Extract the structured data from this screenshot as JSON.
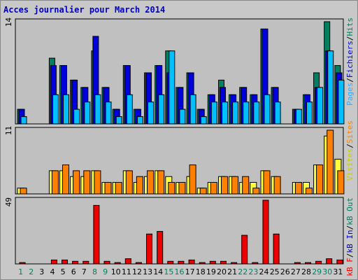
{
  "title": "Acces journalier pour March 2014",
  "days": [
    "1",
    "2",
    "3",
    "4",
    "5",
    "6",
    "7",
    "8",
    "9",
    "10",
    "11",
    "12",
    "13",
    "14",
    "15",
    "16",
    "17",
    "18",
    "19",
    "20",
    "21",
    "22",
    "23",
    "24",
    "25",
    "26",
    "27",
    "28",
    "29",
    "30",
    "31"
  ],
  "weekend_days": [
    "1",
    "2",
    "8",
    "9",
    "15",
    "16",
    "22",
    "23",
    "29",
    "30"
  ],
  "colors": {
    "hits": "#008060",
    "files": "#0000dd",
    "pages": "#00c0ff",
    "visits": "#ffff40",
    "sites": "#ff8000",
    "kbf": "#ee0000",
    "label_hits": "#008060",
    "label_files": "#0000cc",
    "label_pages": "#33aaff",
    "label_visits": "#cccc00",
    "label_sites": "#ff8000",
    "label_kbin": "#0000cc",
    "label_kbout": "#008060",
    "label_kbf": "#ee0000"
  },
  "panel1": {
    "max_label": "14",
    "label_pages": "Pages",
    "label_files": "Fichiers",
    "label_hits": "Hits",
    "sep": "/"
  },
  "panel2": {
    "max_label": "11",
    "label_visits": "Visites",
    "label_sites": "Sites",
    "sep": "/"
  },
  "panel3": {
    "max_label": "49",
    "label_kbf": "kB F",
    "label_kbin": "kB In",
    "label_kbout": "kB Out",
    "sep": "/"
  },
  "chart_data": [
    {
      "type": "bar",
      "categories": [
        "1",
        "2",
        "3",
        "4",
        "5",
        "6",
        "7",
        "8",
        "9",
        "10",
        "11",
        "12",
        "13",
        "14",
        "15",
        "16",
        "17",
        "18",
        "19",
        "20",
        "21",
        "22",
        "23",
        "24",
        "25",
        "26",
        "27",
        "28",
        "29",
        "30",
        "31"
      ],
      "ylim": [
        0,
        14
      ],
      "series": [
        {
          "name": "Hits",
          "values": [
            2,
            0,
            0,
            9,
            8,
            6,
            5,
            10,
            5,
            2,
            8,
            2,
            7,
            8,
            10,
            5,
            7,
            2,
            4,
            6,
            4,
            5,
            4,
            13,
            5,
            0,
            2,
            4,
            7,
            14,
            8
          ]
        },
        {
          "name": "Fichiers",
          "values": [
            2,
            0,
            0,
            8,
            8,
            6,
            5,
            12,
            5,
            2,
            8,
            2,
            7,
            8,
            7,
            5,
            7,
            2,
            4,
            5,
            4,
            5,
            4,
            13,
            5,
            0,
            2,
            4,
            5,
            10,
            7
          ]
        },
        {
          "name": "Pages",
          "values": [
            1,
            0,
            0,
            4,
            4,
            2,
            3,
            4,
            3,
            1,
            4,
            1,
            3,
            4,
            10,
            2,
            4,
            1,
            3,
            3,
            3,
            3,
            3,
            4,
            3,
            0,
            2,
            3,
            5,
            10,
            6
          ]
        }
      ]
    },
    {
      "type": "bar",
      "categories": [
        "1",
        "2",
        "3",
        "4",
        "5",
        "6",
        "7",
        "8",
        "9",
        "10",
        "11",
        "12",
        "13",
        "14",
        "15",
        "16",
        "17",
        "18",
        "19",
        "20",
        "21",
        "22",
        "23",
        "24",
        "25",
        "26",
        "27",
        "28",
        "29",
        "30",
        "31"
      ],
      "ylim": [
        0,
        11
      ],
      "series": [
        {
          "name": "Visites",
          "values": [
            1,
            0,
            0,
            4,
            4,
            3,
            3,
            4,
            2,
            2,
            4,
            2,
            3,
            4,
            3,
            2,
            3,
            1,
            2,
            3,
            3,
            2,
            2,
            4,
            3,
            0,
            2,
            2,
            5,
            10,
            6
          ]
        },
        {
          "name": "Sites",
          "values": [
            1,
            0,
            0,
            4,
            5,
            4,
            4,
            4,
            2,
            2,
            4,
            3,
            4,
            4,
            2,
            2,
            5,
            1,
            2,
            3,
            3,
            3,
            1,
            4,
            3,
            0,
            2,
            1,
            5,
            11,
            4
          ]
        }
      ]
    },
    {
      "type": "bar",
      "categories": [
        "1",
        "2",
        "3",
        "4",
        "5",
        "6",
        "7",
        "8",
        "9",
        "10",
        "11",
        "12",
        "13",
        "14",
        "15",
        "16",
        "17",
        "18",
        "19",
        "20",
        "21",
        "22",
        "23",
        "24",
        "25",
        "26",
        "27",
        "28",
        "29",
        "30",
        "31"
      ],
      "ylim": [
        0,
        49
      ],
      "series": [
        {
          "name": "kB F",
          "values": [
            1,
            0,
            0,
            3,
            3,
            2,
            2,
            45,
            2,
            1,
            4,
            1,
            23,
            25,
            2,
            2,
            3,
            1,
            2,
            2,
            1,
            22,
            1,
            49,
            23,
            0,
            1,
            1,
            2,
            4,
            3
          ]
        }
      ]
    }
  ]
}
